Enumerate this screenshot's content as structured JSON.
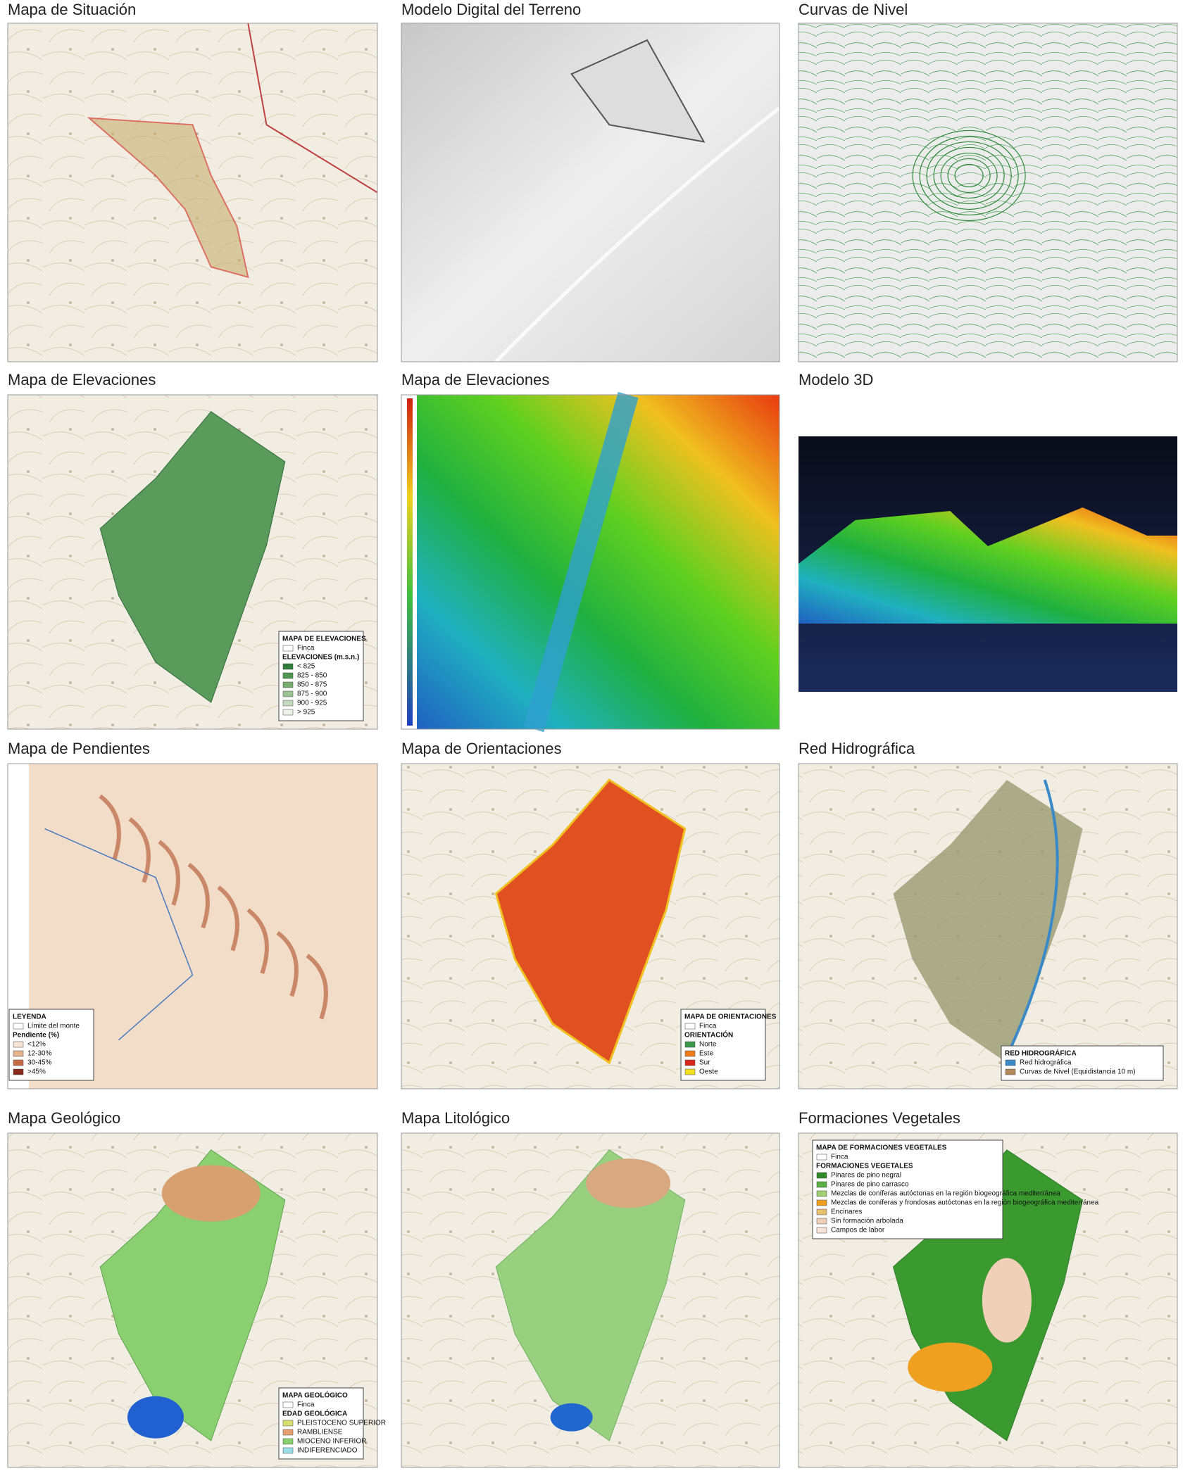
{
  "panels": [
    {
      "title": "Mapa de Situación"
    },
    {
      "title": "Modelo Digital del Terreno"
    },
    {
      "title": "Curvas de Nivel"
    },
    {
      "title": "Mapa de Elevaciones",
      "legend": {
        "title": "MAPA DE ELEVACIONES",
        "sections": [
          {
            "items": [
              {
                "label": "Finca",
                "color": "#ffffff"
              }
            ]
          },
          {
            "heading": "ELEVACIONES (m.s.n.)",
            "items": [
              {
                "label": "< 825",
                "color": "#2f7d3a"
              },
              {
                "label": "825 - 850",
                "color": "#4f9650"
              },
              {
                "label": "850 - 875",
                "color": "#76ad70"
              },
              {
                "label": "875 - 900",
                "color": "#9cc494"
              },
              {
                "label": "900 - 925",
                "color": "#c4dbbd"
              },
              {
                "label": "> 925",
                "color": "#eef3ea"
              }
            ]
          }
        ]
      }
    },
    {
      "title": "Mapa de Elevaciones"
    },
    {
      "title": "Modelo 3D"
    },
    {
      "title": "Mapa de Pendientes",
      "legend": {
        "title": "LEYENDA",
        "sections": [
          {
            "items": [
              {
                "label": "Límite del monte",
                "color": "#ffffff"
              }
            ]
          },
          {
            "heading": "Pendiente (%)",
            "items": [
              {
                "label": "<12%",
                "color": "#f6e6d6"
              },
              {
                "label": "12-30%",
                "color": "#e6b48c"
              },
              {
                "label": "30-45%",
                "color": "#c86a44"
              },
              {
                "label": ">45%",
                "color": "#8a2a1c"
              }
            ]
          }
        ]
      }
    },
    {
      "title": "Mapa de Orientaciones",
      "legend": {
        "title": "MAPA DE ORIENTACIONES",
        "sections": [
          {
            "items": [
              {
                "label": "Finca",
                "color": "#ffffff"
              }
            ]
          },
          {
            "heading": "ORIENTACIÓN",
            "items": [
              {
                "label": "Norte",
                "color": "#3a9a4a"
              },
              {
                "label": "Este",
                "color": "#f07c1c"
              },
              {
                "label": "Sur",
                "color": "#d8261c"
              },
              {
                "label": "Oeste",
                "color": "#f2e01c"
              }
            ]
          }
        ]
      }
    },
    {
      "title": "Red Hidrográfica",
      "legend": {
        "title": "RED HIDROGRÁFICA",
        "sections": [
          {
            "items": [
              {
                "label": "Red hidrográfica",
                "color": "#3a8ac8"
              },
              {
                "label": "Curvas de Nivel (Equidistancia 10 m)",
                "color": "#b48a5a"
              }
            ]
          }
        ]
      }
    },
    {
      "title": "Mapa Geológico",
      "legend": {
        "title": "MAPA GEOLÓGICO",
        "sections": [
          {
            "items": [
              {
                "label": "Finca",
                "color": "#ffffff"
              }
            ]
          },
          {
            "heading": "EDAD GEOLÓGICA",
            "items": [
              {
                "label": "PLEISTOCENO SUPERIOR",
                "color": "#d8e070"
              },
              {
                "label": "RAMBLIENSE",
                "color": "#e8a070"
              },
              {
                "label": "MIOCENO INFERIOR",
                "color": "#8ad070"
              },
              {
                "label": "INDIFERENCIADO",
                "color": "#9ae0e8"
              }
            ]
          }
        ]
      }
    },
    {
      "title": "Mapa Litológico"
    },
    {
      "title": "Formaciones Vegetales",
      "legend": {
        "title": "MAPA DE FORMACIONES VEGETALES",
        "sections": [
          {
            "items": [
              {
                "label": "Finca",
                "color": "#ffffff"
              }
            ]
          },
          {
            "heading": "FORMACIONES VEGETALES",
            "items": [
              {
                "label": "Pinares de pino negral",
                "color": "#2e8a2a"
              },
              {
                "label": "Pinares de pino carrasco",
                "color": "#5ab040"
              },
              {
                "label": "Mezclas de coníferas autóctonas en la región biogeográfica mediterránea",
                "color": "#a0d070"
              },
              {
                "label": "Mezclas de coníferas y frondosas autóctonas en la región biogeográfica mediterránea",
                "color": "#f0a020"
              },
              {
                "label": "Encinares",
                "color": "#e8c070"
              },
              {
                "label": "Sin formación arbolada",
                "color": "#f0d0b8"
              },
              {
                "label": "Campos de labor",
                "color": "#f6e4d8"
              }
            ]
          }
        ]
      }
    }
  ]
}
